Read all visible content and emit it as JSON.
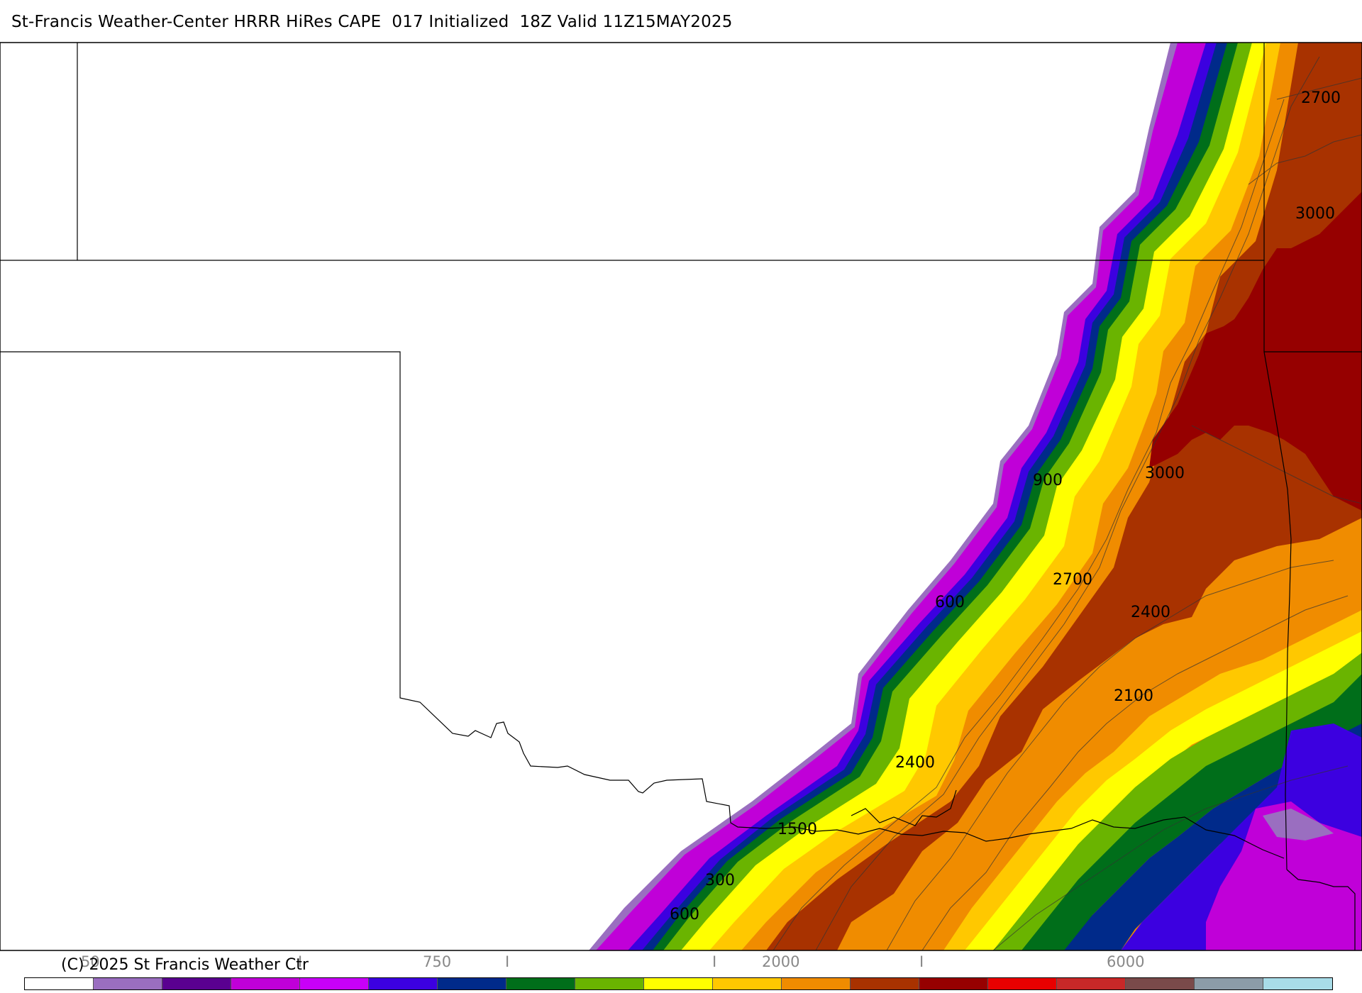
{
  "title": "St-Francis Weather-Center HRRR HiRes CAPE  017 Initialized  18Z Valid 11Z15MAY2025",
  "copyright": "(C) 2025 St Francis Weather Ctr",
  "legend": {
    "ticks": [
      "50",
      "I",
      "750",
      "I",
      "I",
      "2000",
      "I",
      "6000"
    ],
    "colors": [
      "#ffffff",
      "#9a6ec0",
      "#5a0090",
      "#c000d8",
      "#c800f8",
      "#3c00e0",
      "#002a8a",
      "#006e1a",
      "#6ab400",
      "#ffff00",
      "#ffc800",
      "#f08c00",
      "#a83200",
      "#960000",
      "#e80000",
      "#c82828",
      "#7a4a4a",
      "#8c9ca8",
      "#a8dce8"
    ]
  },
  "contour_labels": [
    {
      "text": "2700"
    },
    {
      "text": "3000"
    },
    {
      "text": "3000"
    },
    {
      "text": "900"
    },
    {
      "text": "2700"
    },
    {
      "text": "600"
    },
    {
      "text": "2400"
    },
    {
      "text": "2100"
    },
    {
      "text": "2400"
    },
    {
      "text": "1500"
    },
    {
      "text": "300"
    },
    {
      "text": "600"
    }
  ]
}
